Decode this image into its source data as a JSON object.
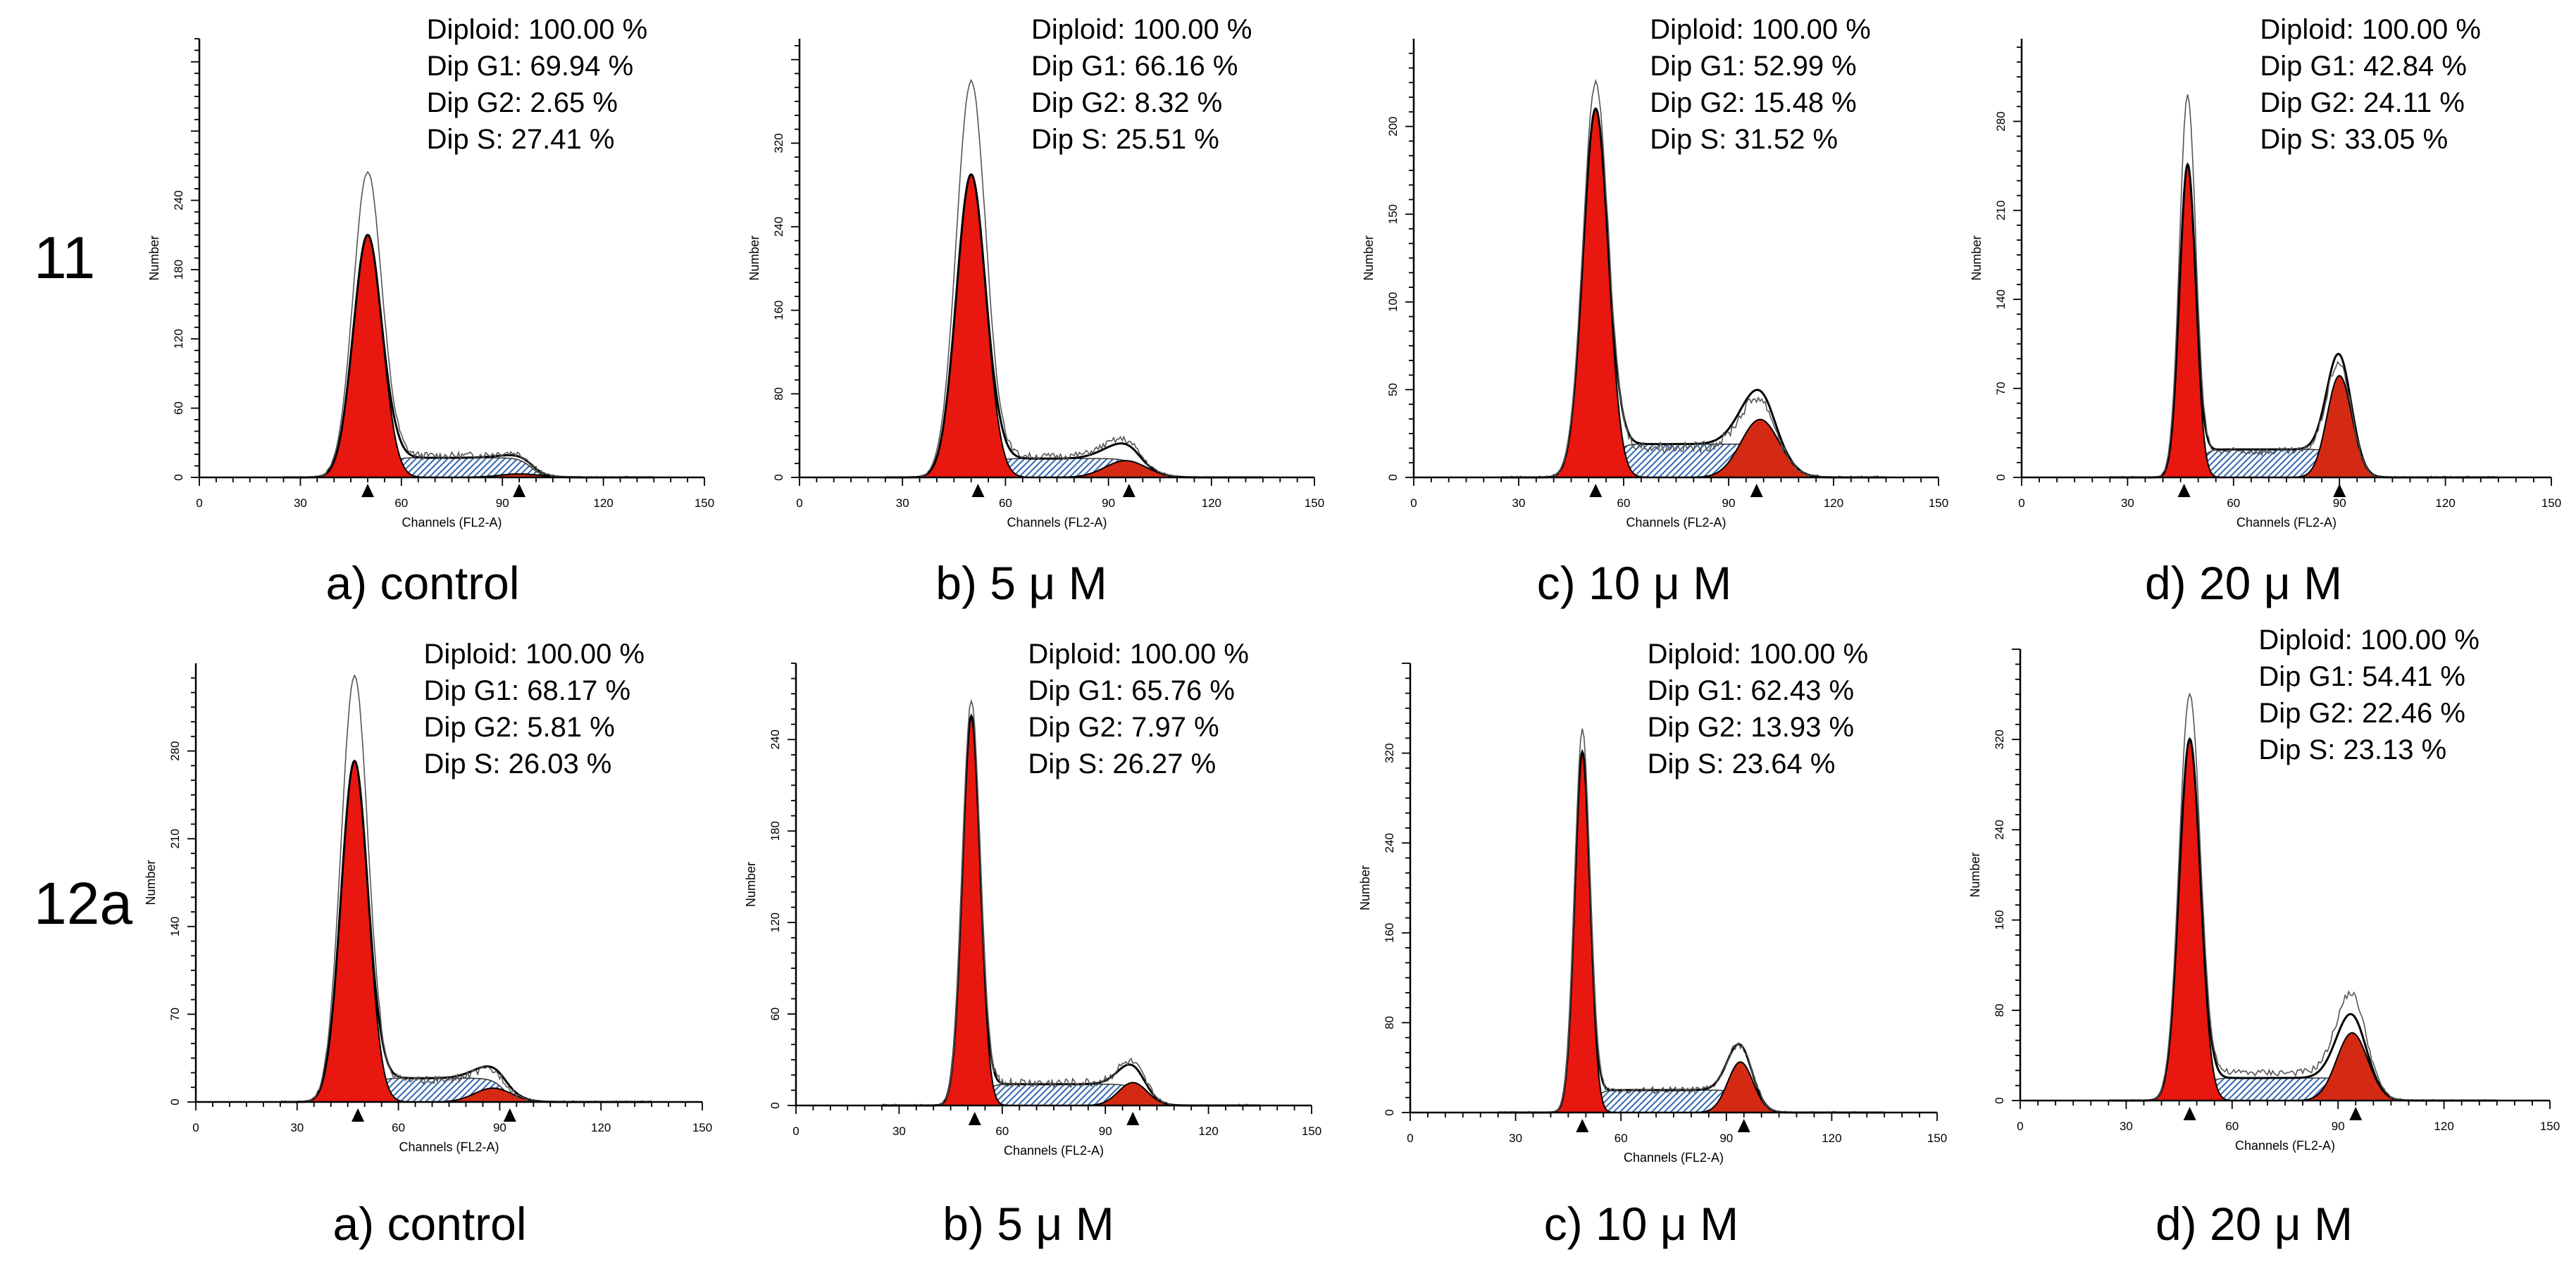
{
  "figure": {
    "row_labels": [
      "11",
      "12a"
    ]
  },
  "chart_data": [
    {
      "type": "histogram",
      "compound": "11",
      "panel_caption": "a) control",
      "xlabel": "Channels (FL2-A)",
      "ylabel": "Number",
      "xlim": [
        0,
        150
      ],
      "xticks": [
        0,
        30,
        60,
        90,
        120,
        150
      ],
      "ylim": [
        0,
        380
      ],
      "yticks": [
        0,
        60,
        120,
        180,
        240
      ],
      "grid": false,
      "stats": [
        "Diploid: 100.00 %",
        "Dip G1: 69.94 %",
        "Dip G2: 2.65 %",
        "Dip S: 27.41 %"
      ],
      "peaks": {
        "g1_channel": 50,
        "g1_height": 210,
        "g1_width": 4.3,
        "g2_channel": 95,
        "g2_height": 3,
        "g2_width": 6,
        "s_height": 17,
        "raw_g1_max": 265,
        "raw_g2_max": 20
      },
      "markers": [
        50,
        95
      ]
    },
    {
      "type": "histogram",
      "compound": "11",
      "panel_caption": "b) 5 μ M",
      "xlabel": "Channels (FL2-A)",
      "ylabel": "Number",
      "xlim": [
        0,
        150
      ],
      "xticks": [
        0,
        30,
        60,
        90,
        120,
        150
      ],
      "ylim": [
        0,
        420
      ],
      "yticks": [
        0,
        80,
        160,
        240,
        320
      ],
      "grid": false,
      "stats": [
        "Diploid: 100.00 %",
        "Dip G1: 66.16 %",
        "Dip G2: 8.32 %",
        "Dip S: 25.51 %"
      ],
      "peaks": {
        "g1_channel": 50,
        "g1_height": 290,
        "g1_width": 4.3,
        "g2_channel": 95,
        "g2_height": 16,
        "g2_width": 6,
        "s_height": 18,
        "raw_g1_max": 380,
        "raw_g2_max": 36
      },
      "markers": [
        52,
        96
      ]
    },
    {
      "type": "histogram",
      "compound": "11",
      "panel_caption": "c) 10 μ M",
      "xlabel": "Channels (FL2-A)",
      "ylabel": "Number",
      "xlim": [
        0,
        150
      ],
      "xticks": [
        0,
        30,
        60,
        90,
        120,
        150
      ],
      "ylim": [
        0,
        250
      ],
      "yticks": [
        0,
        50,
        100,
        150,
        200
      ],
      "grid": false,
      "stats": [
        "Diploid: 100.00 %",
        "Dip G1: 52.99 %",
        "Dip G2: 15.48 %",
        "Dip S: 31.52 %"
      ],
      "peaks": {
        "g1_channel": 52,
        "g1_height": 210,
        "g1_width": 3.6,
        "g2_channel": 99,
        "g2_height": 33,
        "g2_width": 5.5,
        "s_height": 19,
        "raw_g1_max": 225,
        "raw_g2_max": 45
      },
      "markers": [
        52,
        98
      ]
    },
    {
      "type": "histogram",
      "compound": "11",
      "panel_caption": "d) 20 μ M",
      "xlabel": "Channels (FL2-A)",
      "ylabel": "Number",
      "xlim": [
        0,
        150
      ],
      "xticks": [
        0,
        30,
        60,
        90,
        120,
        150
      ],
      "ylim": [
        0,
        345
      ],
      "yticks": [
        0,
        70,
        140,
        210,
        280
      ],
      "grid": false,
      "stats": [
        "Diploid: 100.00 %",
        "Dip G1: 42.84 %",
        "Dip G2: 24.11 %",
        "Dip S: 33.05 %"
      ],
      "peaks": {
        "g1_channel": 47,
        "g1_height": 245,
        "g1_width": 2.3,
        "g2_channel": 90,
        "g2_height": 80,
        "g2_width": 3.5,
        "s_height": 22,
        "raw_g1_max": 300,
        "raw_g2_max": 90
      },
      "markers": [
        46,
        90
      ]
    },
    {
      "type": "histogram",
      "compound": "12a",
      "panel_caption": "a) control",
      "xlabel": "Channels (FL2-A)",
      "ylabel": "Number",
      "xlim": [
        0,
        150
      ],
      "xticks": [
        0,
        30,
        60,
        90,
        120,
        150
      ],
      "ylim": [
        0,
        350
      ],
      "yticks": [
        0,
        70,
        140,
        210,
        280
      ],
      "grid": false,
      "stats": [
        "Diploid: 100.00 %",
        "Dip G1: 68.17 %",
        "Dip G2: 5.81 %",
        "Dip S: 26.03 %"
      ],
      "peaks": {
        "g1_channel": 47,
        "g1_height": 272,
        "g1_width": 4.0,
        "g2_channel": 88,
        "g2_height": 11,
        "g2_width": 5.5,
        "s_height": 19,
        "raw_g1_max": 340,
        "raw_g2_max": 25
      },
      "markers": [
        48,
        93
      ]
    },
    {
      "type": "histogram",
      "compound": "12a",
      "panel_caption": "b) 5 μ M",
      "xlabel": "Channels (FL2-A)",
      "ylabel": "Number",
      "xlim": [
        0,
        150
      ],
      "xticks": [
        0,
        30,
        60,
        90,
        120,
        150
      ],
      "ylim": [
        0,
        290
      ],
      "yticks": [
        0,
        60,
        120,
        180,
        240
      ],
      "grid": false,
      "stats": [
        "Diploid: 100.00 %",
        "Dip G1: 65.76 %",
        "Dip G2: 7.97 %",
        "Dip S: 26.27 %"
      ],
      "peaks": {
        "g1_channel": 51,
        "g1_height": 255,
        "g1_width": 2.6,
        "g2_channel": 98,
        "g2_height": 15,
        "g2_width": 4.2,
        "s_height": 14,
        "raw_g1_max": 265,
        "raw_g2_max": 28
      },
      "markers": [
        52,
        98
      ]
    },
    {
      "type": "histogram",
      "compound": "12a",
      "panel_caption": "c) 10 μ M",
      "xlabel": "Channels (FL2-A)",
      "ylabel": "Number",
      "xlim": [
        0,
        150
      ],
      "xticks": [
        0,
        30,
        60,
        90,
        120,
        150
      ],
      "ylim": [
        0,
        400
      ],
      "yticks": [
        0,
        80,
        160,
        240,
        320
      ],
      "grid": false,
      "stats": [
        "Diploid: 100.00 %",
        "Dip G1: 62.43 %",
        "Dip G2: 13.93 %",
        "Dip S: 23.64 %"
      ],
      "peaks": {
        "g1_channel": 49,
        "g1_height": 320,
        "g1_width": 2.2,
        "g2_channel": 94,
        "g2_height": 45,
        "g2_width": 3.6,
        "s_height": 20,
        "raw_g1_max": 340,
        "raw_g2_max": 60
      },
      "markers": [
        49,
        95
      ]
    },
    {
      "type": "histogram",
      "compound": "12a",
      "panel_caption": "d) 20 μ M",
      "xlabel": "Channels (FL2-A)",
      "ylabel": "Number",
      "xlim": [
        0,
        150
      ],
      "xticks": [
        0,
        30,
        60,
        90,
        120,
        150
      ],
      "ylim": [
        0,
        400
      ],
      "yticks": [
        0,
        80,
        160,
        240,
        320
      ],
      "grid": false,
      "stats": [
        "Diploid: 100.00 %",
        "Dip G1: 54.41 %",
        "Dip G2: 22.46 %",
        "Dip S: 23.13 %"
      ],
      "peaks": {
        "g1_channel": 48,
        "g1_height": 320,
        "g1_width": 3.0,
        "g2_channel": 94,
        "g2_height": 60,
        "g2_width": 4.4,
        "s_height": 20,
        "raw_g1_max": 360,
        "raw_g2_max": 95
      },
      "markers": [
        48,
        95
      ]
    }
  ]
}
